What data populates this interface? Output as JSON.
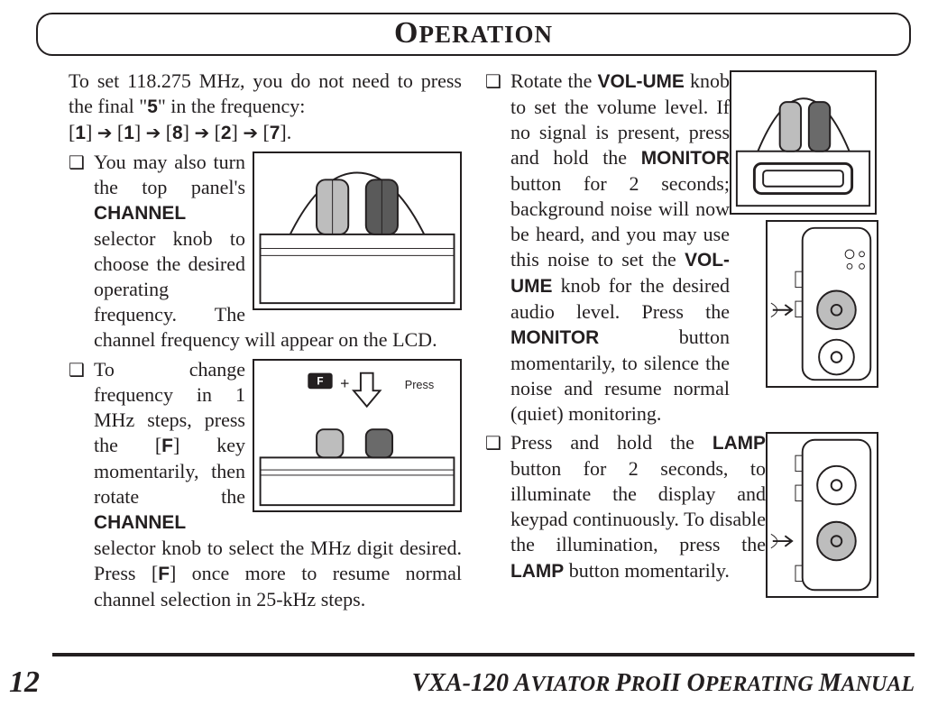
{
  "title_html": "<span class='first'>O</span>PERATION",
  "col1": {
    "intro_html": "To set 118.275 MHz, you do not need to press the final \"<span class='kb'>5</span>\" in the frequency:",
    "seq_html": "[<span class='kb'>1</span>] <span class='arrow'>➔</span> [<span class='kb'>1</span>] <span class='arrow'>➔</span> [<span class='kb'>8</span>] <span class='arrow'>➔</span> [<span class='kb'>2</span>] <span class='arrow'>➔</span> [<span class='kb'>7</span>].",
    "b1_html": "You may also turn the top panel's <b>CHANNEL</b> selector knob to choose the desired operating frequency. The channel frequency will appear on the LCD.",
    "b2_html": "To change frequency in 1 MHz steps, press the [<span class='kb'>F</span>] key momentarily, then rotate the <b>CHANNEL</b> selector knob to select the MHz digit desired. Press [<span class='kb'>F</span>] once more to resume normal channel selection in 25-kHz steps."
  },
  "col2": {
    "b1_html": "Rotate the <b>VOL-UME</b> knob to set the volume level. If no signal is present, press and hold the <b>MONITOR</b> button for 2 seconds; background noise will now be heard, and you may use this noise to set the <b>VOL-UME</b> knob for the desired audio level. Press the <b>MONITOR</b> button momentarily, to silence the noise and resume normal (quiet) monitoring.",
    "b2_html": "Press and hold the <b>LAMP</b> button for 2 seconds, to illuminate the display and keypad continuously. To disable the illumination, press the <b>LAMP</b> button momentarily."
  },
  "page_number": "12",
  "doc_title_html": "<span class='big'>VXA-120 A</span>VIATOR <span class='big'>P</span>RO<span class='big'>II O</span>PERATING <span class='big'>M</span>ANUAL",
  "bullet": "❑"
}
